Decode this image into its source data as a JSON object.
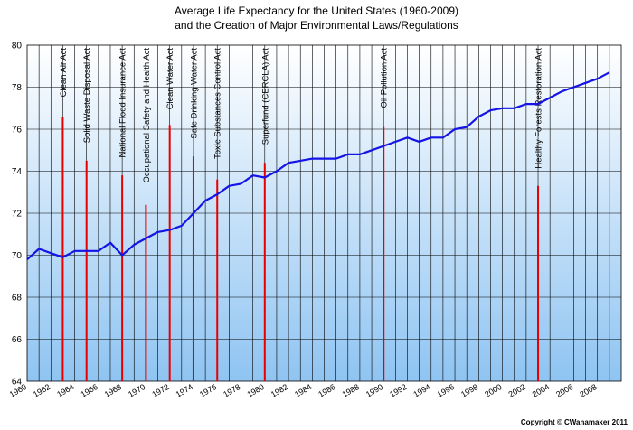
{
  "chart_data": {
    "type": "line",
    "title_line1": "Average Life Expectancy for the United States (1960-2009)",
    "title_line2": "and the Creation of Major Environmental Laws/Regulations",
    "xlim": [
      1960,
      2010
    ],
    "ylim": [
      64,
      80
    ],
    "y_ticks": [
      64,
      66,
      68,
      70,
      72,
      74,
      76,
      78,
      80
    ],
    "x_ticks": [
      1960,
      1962,
      1964,
      1966,
      1968,
      1970,
      1972,
      1974,
      1976,
      1978,
      1980,
      1982,
      1984,
      1986,
      1988,
      1990,
      1992,
      1994,
      1996,
      1998,
      2000,
      2002,
      2004,
      2006,
      2008
    ],
    "grid": true,
    "series": [
      {
        "color": "#1414e6",
        "x": [
          1960,
          1961,
          1962,
          1963,
          1964,
          1965,
          1966,
          1967,
          1968,
          1969,
          1970,
          1971,
          1972,
          1973,
          1974,
          1975,
          1976,
          1977,
          1978,
          1979,
          1980,
          1981,
          1982,
          1983,
          1984,
          1985,
          1986,
          1987,
          1988,
          1989,
          1990,
          1991,
          1992,
          1993,
          1994,
          1995,
          1996,
          1997,
          1998,
          1999,
          2000,
          2001,
          2002,
          2003,
          2004,
          2005,
          2006,
          2007,
          2008,
          2009
        ],
        "y": [
          69.8,
          70.3,
          70.1,
          69.9,
          70.2,
          70.2,
          70.2,
          70.6,
          70.0,
          70.5,
          70.8,
          71.1,
          71.2,
          71.4,
          72.0,
          72.6,
          72.9,
          73.3,
          73.4,
          73.8,
          73.7,
          74.0,
          74.4,
          74.5,
          74.6,
          74.6,
          74.6,
          74.8,
          74.8,
          75.0,
          75.2,
          75.4,
          75.6,
          75.4,
          75.6,
          75.6,
          76.0,
          76.1,
          76.6,
          76.9,
          77.0,
          77.0,
          77.2,
          77.2,
          77.5,
          77.8,
          78.0,
          78.2,
          78.4,
          78.7
        ]
      }
    ],
    "laws": [
      {
        "year": 1963,
        "top": 76.6,
        "label": "Clean Air Act"
      },
      {
        "year": 1965,
        "top": 74.5,
        "label": "Solid Waste Disposal Act"
      },
      {
        "year": 1968,
        "top": 73.8,
        "label": "National Flood Insurance Act"
      },
      {
        "year": 1970,
        "top": 72.4,
        "label": "Occupational Safety and Health Act"
      },
      {
        "year": 1972,
        "top": 76.2,
        "label": "Clean Water Act"
      },
      {
        "year": 1974,
        "top": 74.7,
        "label": "Safe Drinking Water Act"
      },
      {
        "year": 1976,
        "top": 73.6,
        "label": "Toxic Substances Control Act"
      },
      {
        "year": 1980,
        "top": 74.4,
        "label": "Superfund (CERCLA) Act"
      },
      {
        "year": 1990,
        "top": 76.1,
        "label": "Oil Pollution Act"
      },
      {
        "year": 2003,
        "top": 73.3,
        "label": "Healthy Forests Restoration Act"
      }
    ],
    "law_line_color": "#e60000",
    "copyright": "Copyright © CWanamaker 2011"
  }
}
